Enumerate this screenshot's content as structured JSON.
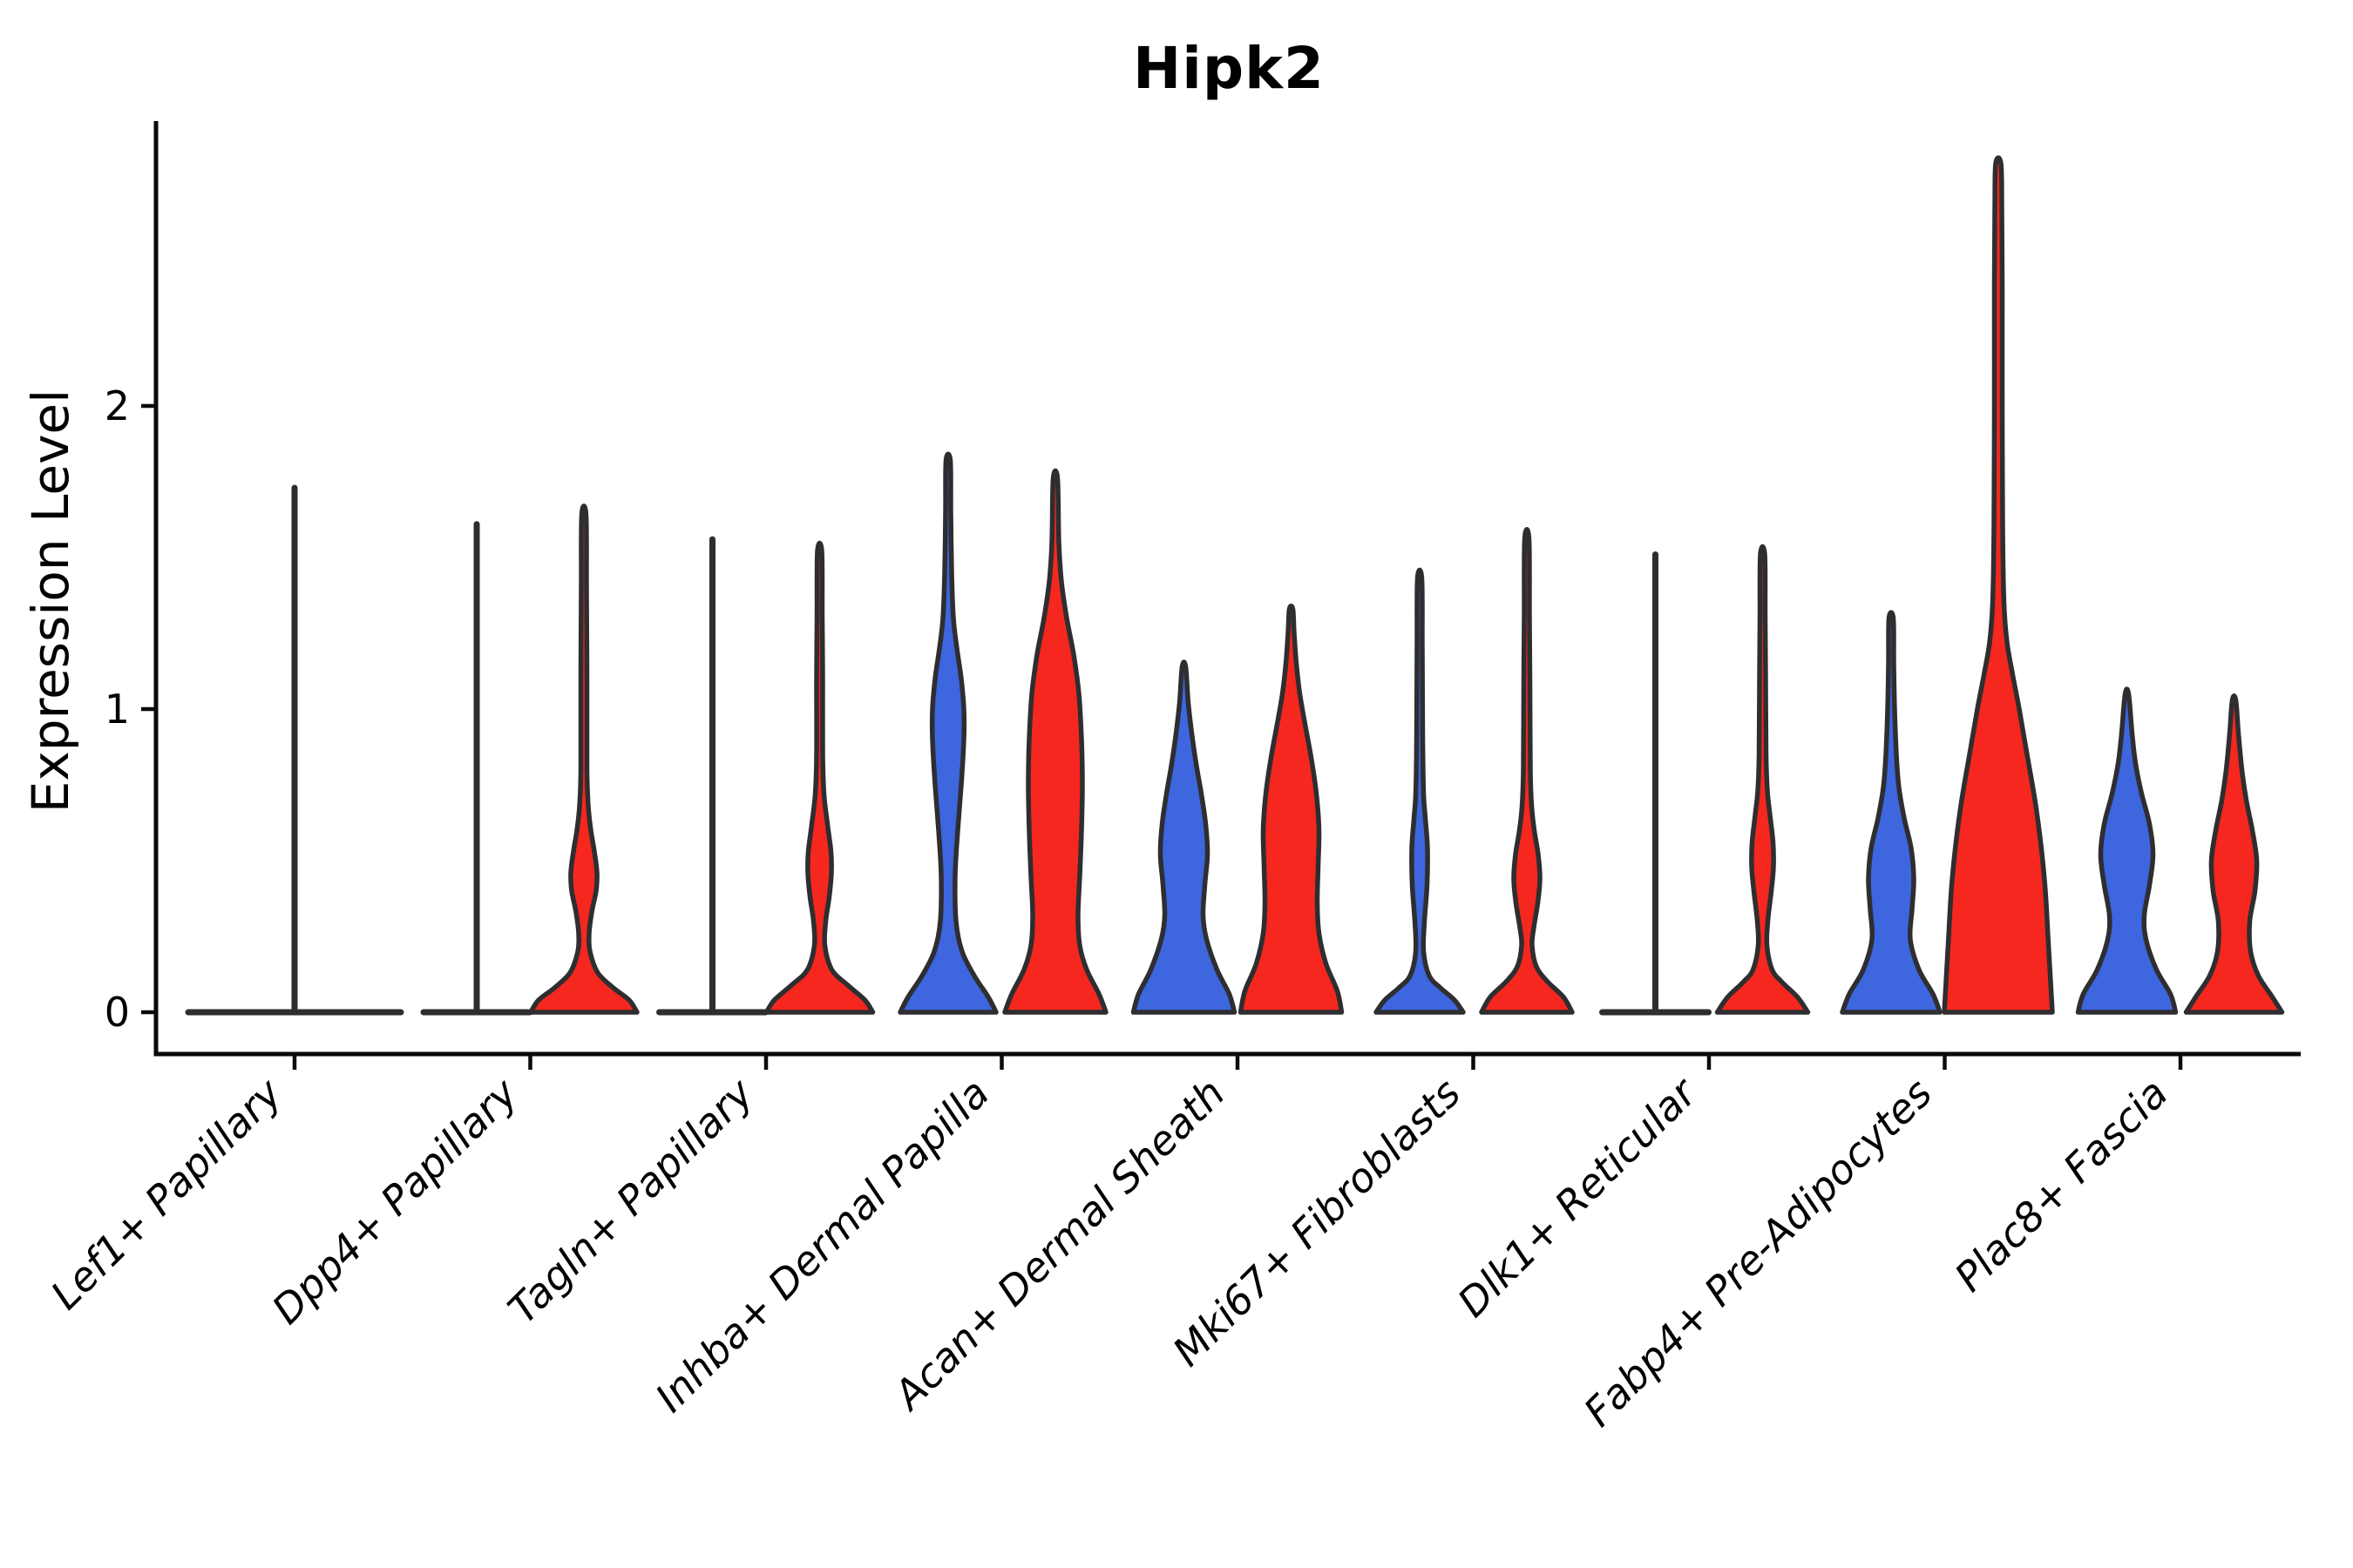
{
  "chart_data": {
    "type": "violin",
    "title": "Hipk2",
    "ylabel": "Expression Level",
    "xlabel": "",
    "yticks": [
      0,
      1,
      2
    ],
    "ylim": [
      0,
      2.93
    ],
    "grid": false,
    "legend": "none",
    "split_colors": {
      "left": "#3D66DF",
      "right": "#F5271F",
      "both": "#333333"
    },
    "outline_color": "#2E2E30",
    "axis_color": "#0a0a0a",
    "categories": [
      "Lef1+ Papillary",
      "Dpp4+ Papillary",
      "Tagln+ Papillary",
      "Inhba+ Dermal Papilla",
      "Acan+ Dermal Sheath",
      "Mki67+ Fibroblasts",
      "Dlk1+ Reticular",
      "Fabp4+ Pre-Adipocytes",
      "Plac8+ Fascia"
    ],
    "violins": [
      {
        "cat": 0,
        "group": "both",
        "kind": "flat",
        "top": 1.73
      },
      {
        "cat": 1,
        "group": "left",
        "kind": "flat",
        "top": 1.61
      },
      {
        "cat": 1,
        "group": "right",
        "kind": "body",
        "top": 1.64,
        "profile": [
          [
            0,
            61
          ],
          [
            0.04,
            52
          ],
          [
            0.08,
            34
          ],
          [
            0.13,
            16
          ],
          [
            0.2,
            7
          ],
          [
            0.26,
            6
          ],
          [
            0.33,
            9
          ],
          [
            0.4,
            14
          ],
          [
            0.46,
            15
          ],
          [
            0.53,
            12
          ],
          [
            0.6,
            8
          ],
          [
            0.68,
            5
          ],
          [
            0.8,
            3.5
          ],
          [
            1.1,
            3.5
          ],
          [
            1.4,
            3
          ],
          [
            1.64,
            2.5
          ]
        ]
      },
      {
        "cat": 2,
        "group": "left",
        "kind": "flat",
        "top": 1.56
      },
      {
        "cat": 2,
        "group": "right",
        "kind": "body",
        "top": 1.52,
        "profile": [
          [
            0,
            61
          ],
          [
            0.04,
            52
          ],
          [
            0.09,
            32
          ],
          [
            0.14,
            14
          ],
          [
            0.22,
            6
          ],
          [
            0.3,
            7
          ],
          [
            0.38,
            11
          ],
          [
            0.46,
            13.5
          ],
          [
            0.53,
            13
          ],
          [
            0.62,
            9
          ],
          [
            0.72,
            5
          ],
          [
            0.85,
            3.5
          ],
          [
            1.1,
            3.5
          ],
          [
            1.3,
            3
          ],
          [
            1.52,
            2.5
          ]
        ]
      },
      {
        "cat": 3,
        "group": "left",
        "kind": "body",
        "top": 1.82,
        "profile": [
          [
            0,
            55
          ],
          [
            0.05,
            46
          ],
          [
            0.12,
            30
          ],
          [
            0.2,
            16
          ],
          [
            0.3,
            9
          ],
          [
            0.45,
            8
          ],
          [
            0.6,
            11
          ],
          [
            0.75,
            15
          ],
          [
            0.9,
            18
          ],
          [
            1.0,
            18
          ],
          [
            1.1,
            15
          ],
          [
            1.2,
            10
          ],
          [
            1.3,
            6
          ],
          [
            1.45,
            4
          ],
          [
            1.65,
            3
          ],
          [
            1.82,
            2.5
          ]
        ]
      },
      {
        "cat": 3,
        "group": "right",
        "kind": "body",
        "top": 1.76,
        "profile": [
          [
            0,
            58
          ],
          [
            0.06,
            50
          ],
          [
            0.14,
            36
          ],
          [
            0.22,
            28
          ],
          [
            0.32,
            26
          ],
          [
            0.45,
            28
          ],
          [
            0.6,
            30
          ],
          [
            0.75,
            31
          ],
          [
            0.9,
            30
          ],
          [
            1.05,
            27
          ],
          [
            1.18,
            21
          ],
          [
            1.3,
            13
          ],
          [
            1.42,
            7
          ],
          [
            1.55,
            4
          ],
          [
            1.76,
            2.5
          ]
        ]
      },
      {
        "cat": 4,
        "group": "left",
        "kind": "body",
        "top": 1.14,
        "profile": [
          [
            0,
            58
          ],
          [
            0.06,
            52
          ],
          [
            0.14,
            38
          ],
          [
            0.24,
            26
          ],
          [
            0.32,
            22
          ],
          [
            0.42,
            24
          ],
          [
            0.52,
            27
          ],
          [
            0.62,
            25
          ],
          [
            0.72,
            20
          ],
          [
            0.82,
            14
          ],
          [
            0.92,
            9
          ],
          [
            1.02,
            5
          ],
          [
            1.14,
            2
          ]
        ]
      },
      {
        "cat": 4,
        "group": "right",
        "kind": "body",
        "top": 1.33,
        "profile": [
          [
            0,
            58
          ],
          [
            0.07,
            53
          ],
          [
            0.16,
            40
          ],
          [
            0.26,
            32
          ],
          [
            0.36,
            30
          ],
          [
            0.48,
            31
          ],
          [
            0.6,
            32
          ],
          [
            0.72,
            29
          ],
          [
            0.84,
            23
          ],
          [
            0.95,
            16
          ],
          [
            1.05,
            10
          ],
          [
            1.15,
            6
          ],
          [
            1.25,
            3.5
          ],
          [
            1.33,
            2
          ]
        ]
      },
      {
        "cat": 5,
        "group": "left",
        "kind": "body",
        "top": 1.43,
        "profile": [
          [
            0,
            50
          ],
          [
            0.04,
            40
          ],
          [
            0.08,
            24
          ],
          [
            0.12,
            11
          ],
          [
            0.2,
            4.5
          ],
          [
            0.3,
            5.5
          ],
          [
            0.42,
            8.5
          ],
          [
            0.54,
            9
          ],
          [
            0.64,
            6.5
          ],
          [
            0.72,
            4.5
          ],
          [
            0.9,
            3.5
          ],
          [
            1.2,
            3
          ],
          [
            1.43,
            2.5
          ]
        ]
      },
      {
        "cat": 5,
        "group": "right",
        "kind": "body",
        "top": 1.56,
        "profile": [
          [
            0,
            52
          ],
          [
            0.05,
            42
          ],
          [
            0.1,
            24
          ],
          [
            0.15,
            11
          ],
          [
            0.22,
            6
          ],
          [
            0.28,
            8
          ],
          [
            0.36,
            12.5
          ],
          [
            0.44,
            15
          ],
          [
            0.52,
            13
          ],
          [
            0.6,
            8.5
          ],
          [
            0.68,
            5.5
          ],
          [
            0.8,
            4
          ],
          [
            1.1,
            3.5
          ],
          [
            1.3,
            3
          ],
          [
            1.56,
            2.5
          ]
        ]
      },
      {
        "cat": 6,
        "group": "left",
        "kind": "flat",
        "top": 1.51
      },
      {
        "cat": 6,
        "group": "right",
        "kind": "body",
        "top": 1.51,
        "profile": [
          [
            0,
            52
          ],
          [
            0.05,
            40
          ],
          [
            0.1,
            22
          ],
          [
            0.14,
            11
          ],
          [
            0.22,
            5
          ],
          [
            0.3,
            6
          ],
          [
            0.4,
            10
          ],
          [
            0.48,
            12.5
          ],
          [
            0.56,
            12
          ],
          [
            0.65,
            8.5
          ],
          [
            0.73,
            5.5
          ],
          [
            0.85,
            4
          ],
          [
            1.1,
            3.5
          ],
          [
            1.3,
            3
          ],
          [
            1.51,
            2.5
          ]
        ]
      },
      {
        "cat": 7,
        "group": "left",
        "kind": "body",
        "top": 1.3,
        "profile": [
          [
            0,
            56
          ],
          [
            0.06,
            48
          ],
          [
            0.14,
            32
          ],
          [
            0.24,
            22
          ],
          [
            0.34,
            24
          ],
          [
            0.44,
            26
          ],
          [
            0.54,
            23
          ],
          [
            0.64,
            15
          ],
          [
            0.74,
            9
          ],
          [
            0.85,
            6
          ],
          [
            1.0,
            4
          ],
          [
            1.15,
            3
          ],
          [
            1.3,
            2.5
          ]
        ]
      },
      {
        "cat": 7,
        "group": "right",
        "kind": "body",
        "top": 2.8,
        "profile": [
          [
            0,
            62
          ],
          [
            0.1,
            60
          ],
          [
            0.25,
            57
          ],
          [
            0.4,
            54
          ],
          [
            0.55,
            49
          ],
          [
            0.7,
            42
          ],
          [
            0.85,
            33
          ],
          [
            1.0,
            24
          ],
          [
            1.12,
            16
          ],
          [
            1.22,
            10
          ],
          [
            1.35,
            6.5
          ],
          [
            1.6,
            5
          ],
          [
            2.0,
            4.5
          ],
          [
            2.4,
            4.5
          ],
          [
            2.65,
            4
          ],
          [
            2.8,
            3
          ]
        ]
      },
      {
        "cat": 8,
        "group": "left",
        "kind": "body",
        "top": 1.05,
        "profile": [
          [
            0,
            56
          ],
          [
            0.06,
            50
          ],
          [
            0.14,
            34
          ],
          [
            0.24,
            22
          ],
          [
            0.32,
            20
          ],
          [
            0.42,
            26
          ],
          [
            0.52,
            30
          ],
          [
            0.62,
            26
          ],
          [
            0.72,
            17
          ],
          [
            0.82,
            10
          ],
          [
            0.92,
            6
          ],
          [
            1.05,
            2
          ]
        ]
      },
      {
        "cat": 8,
        "group": "right",
        "kind": "body",
        "top": 1.03,
        "profile": [
          [
            0,
            55
          ],
          [
            0.05,
            44
          ],
          [
            0.12,
            28
          ],
          [
            0.2,
            19
          ],
          [
            0.3,
            18
          ],
          [
            0.4,
            24
          ],
          [
            0.5,
            26
          ],
          [
            0.6,
            21
          ],
          [
            0.7,
            14
          ],
          [
            0.8,
            9
          ],
          [
            0.92,
            5
          ],
          [
            1.03,
            2
          ]
        ]
      }
    ]
  }
}
